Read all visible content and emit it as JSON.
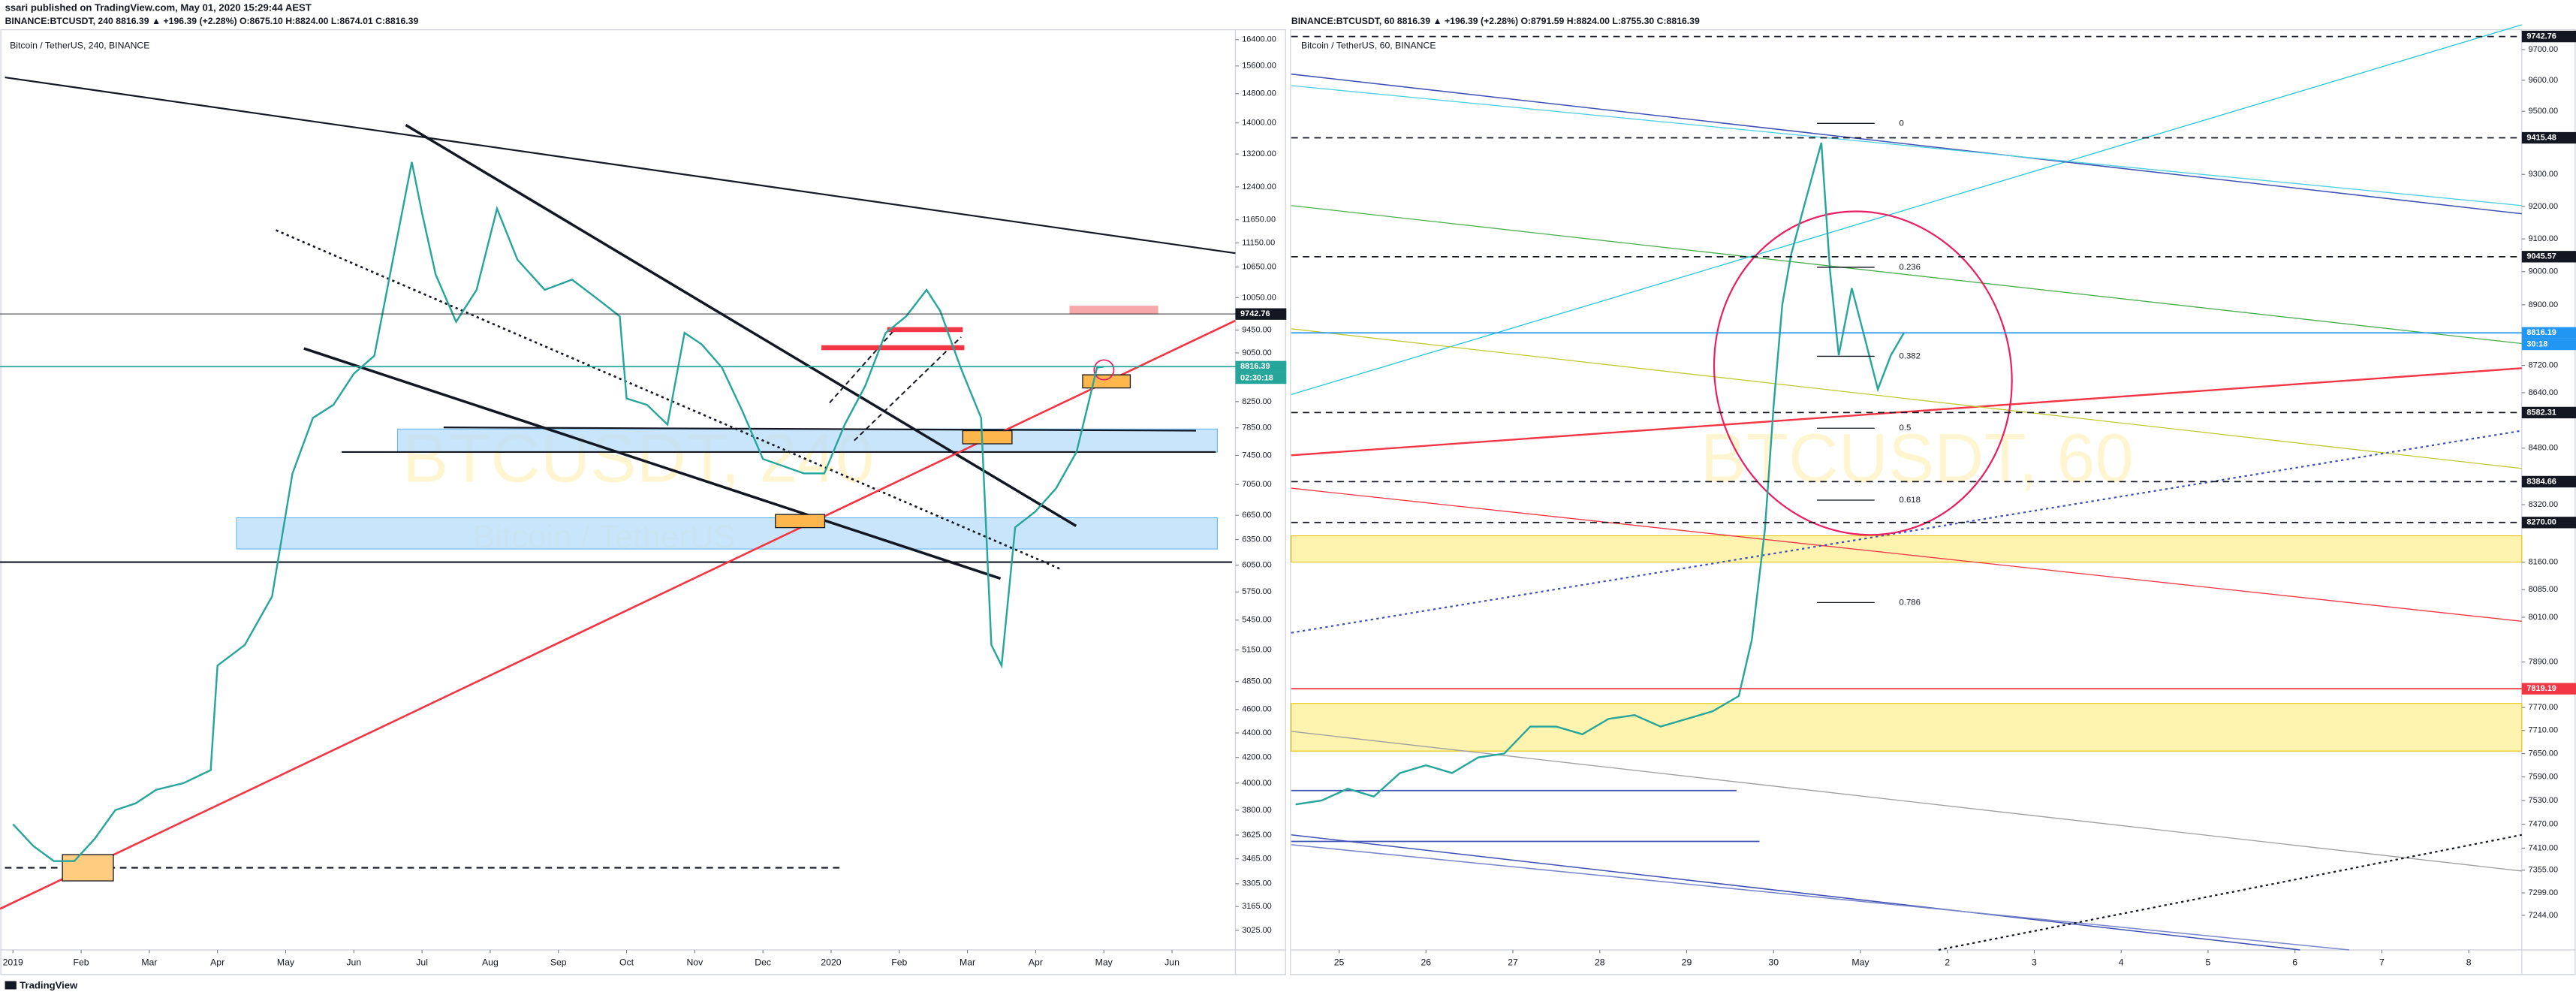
{
  "header": {
    "author_line": "ssari published on TradingView.com, May 01, 2020 15:29:44 AEST"
  },
  "footer": "TradingView",
  "chart_data": [
    {
      "type": "line",
      "header": "BINANCE:BTCUSDT, 240  8816.39 ▲ +196.39 (+2.28%)  O:8675.10  H:8824.00  L:8674.01  C:8816.39",
      "title": "Bitcoin / TetherUS, 240, BINANCE",
      "watermark": "BTCUSDT, 240",
      "watermark_subtitle": "Bitcoin / TetherUS",
      "color": "#26a69a",
      "log_scale": true,
      "x": [
        0,
        0.3,
        0.6,
        0.9,
        1.2,
        1.5,
        1.8,
        2.1,
        2.5,
        2.9,
        3.0,
        3.4,
        3.8,
        4.1,
        4.4,
        4.7,
        5.0,
        5.3,
        5.6,
        5.85,
        6.0,
        6.2,
        6.5,
        6.8,
        7.1,
        7.4,
        7.8,
        8.2,
        8.6,
        8.9,
        9.0,
        9.3,
        9.6,
        9.85,
        10.1,
        10.4,
        10.7,
        11.0,
        11.3,
        11.6,
        11.9,
        12.2,
        12.5,
        12.8,
        13.1,
        13.4,
        13.6,
        13.9,
        14.2,
        14.35,
        14.5,
        14.7,
        15.0,
        15.3,
        15.6,
        15.9,
        16.0
      ],
      "values": [
        3700,
        3550,
        3450,
        3450,
        3600,
        3800,
        3850,
        3950,
        4000,
        4100,
        5000,
        5200,
        5700,
        7200,
        8000,
        8200,
        8700,
        9000,
        11000,
        13000,
        11800,
        10500,
        9600,
        10200,
        11900,
        10800,
        10200,
        10400,
        10000,
        9700,
        8300,
        8200,
        7900,
        9400,
        9200,
        8800,
        8100,
        7400,
        7300,
        7200,
        7200,
        7900,
        8500,
        9400,
        9700,
        10200,
        9800,
        8800,
        8000,
        5200,
        5000,
        6500,
        6700,
        7000,
        7500,
        8800,
        8816
      ],
      "xlim": [
        -0.19,
        17.93
      ],
      "xticks": [
        {
          "value": 0,
          "label": "2019"
        },
        {
          "value": 1,
          "label": "Feb"
        },
        {
          "value": 2,
          "label": "Mar"
        },
        {
          "value": 3,
          "label": "Apr"
        },
        {
          "value": 4,
          "label": "May"
        },
        {
          "value": 5,
          "label": "Jun"
        },
        {
          "value": 6,
          "label": "Jul"
        },
        {
          "value": 7,
          "label": "Aug"
        },
        {
          "value": 8,
          "label": "Sep"
        },
        {
          "value": 9,
          "label": "Oct"
        },
        {
          "value": 10,
          "label": "Nov"
        },
        {
          "value": 11,
          "label": "Dec"
        },
        {
          "value": 12,
          "label": "2020"
        },
        {
          "value": 13,
          "label": "Feb"
        },
        {
          "value": 14,
          "label": "Mar"
        },
        {
          "value": 15,
          "label": "Apr"
        },
        {
          "value": 16,
          "label": "May"
        },
        {
          "value": 17,
          "label": "Jun"
        }
      ],
      "ylim": [
        2915,
        16710
      ],
      "yticks": [
        {
          "value": 16400,
          "label": "16400.00"
        },
        {
          "value": 15600,
          "label": "15600.00"
        },
        {
          "value": 14800,
          "label": "14800.00"
        },
        {
          "value": 14000,
          "label": "14000.00"
        },
        {
          "value": 13200,
          "label": "13200.00"
        },
        {
          "value": 12400,
          "label": "12400.00"
        },
        {
          "value": 11650,
          "label": "11650.00"
        },
        {
          "value": 11150,
          "label": "11150.00"
        },
        {
          "value": 10650,
          "label": "10650.00"
        },
        {
          "value": 10050,
          "label": "10050.00"
        },
        {
          "value": 9450,
          "label": "9450.00"
        },
        {
          "value": 9050,
          "label": "9050.00"
        },
        {
          "value": 8250,
          "label": "8250.00"
        },
        {
          "value": 7850,
          "label": "7850.00"
        },
        {
          "value": 7450,
          "label": "7450.00"
        },
        {
          "value": 7050,
          "label": "7050.00"
        },
        {
          "value": 6650,
          "label": "6650.00"
        },
        {
          "value": 6350,
          "label": "6350.00"
        },
        {
          "value": 6050,
          "label": "6050.00"
        },
        {
          "value": 5750,
          "label": "5750.00"
        },
        {
          "value": 5450,
          "label": "5450.00"
        },
        {
          "value": 5150,
          "label": "5150.00"
        },
        {
          "value": 4850,
          "label": "4850.00"
        },
        {
          "value": 4600,
          "label": "4600.00"
        },
        {
          "value": 4400,
          "label": "4400.00"
        },
        {
          "value": 4200,
          "label": "4200.00"
        },
        {
          "value": 4000,
          "label": "4000.00"
        },
        {
          "value": 3800,
          "label": "3800.00"
        },
        {
          "value": 3625,
          "label": "3625.00"
        },
        {
          "value": 3465,
          "label": "3465.00"
        },
        {
          "value": 3305,
          "label": "3305.00"
        },
        {
          "value": 3165,
          "label": "3165.00"
        },
        {
          "value": 3025,
          "label": "3025.00"
        }
      ],
      "price_labels": [
        9742.76,
        8816.39
      ],
      "price_label_colors": [
        "#131722",
        "#26a69a"
      ],
      "countdown": "02:30:18"
    },
    {
      "type": "line",
      "header": "BINANCE:BTCUSDT, 60  8816.39 ▲ +196.39 (+2.28%)  O:8791.59  H:8824.00  L:8755.30  C:8816.39",
      "title": "Bitcoin / TetherUS, 60, BINANCE",
      "watermark": "BTCUSDT, 60",
      "color": "#26a69a",
      "log_scale": true,
      "x": [
        24.5,
        24.8,
        25.1,
        25.4,
        25.7,
        26.0,
        26.3,
        26.6,
        26.9,
        27.2,
        27.5,
        27.8,
        28.1,
        28.4,
        28.7,
        29.0,
        29.3,
        29.6,
        29.75,
        29.9,
        30.0,
        30.1,
        30.2,
        30.35,
        30.55,
        30.65,
        30.75,
        30.9,
        31.05,
        31.2,
        31.35,
        31.5
      ],
      "values": [
        7520,
        7530,
        7560,
        7540,
        7600,
        7620,
        7600,
        7640,
        7650,
        7720,
        7720,
        7700,
        7740,
        7750,
        7720,
        7740,
        7760,
        7800,
        7950,
        8250,
        8600,
        8900,
        9050,
        9200,
        9400,
        9000,
        8750,
        8950,
        8800,
        8650,
        8750,
        8816
      ],
      "xlim": [
        24.45,
        38.61
      ],
      "xticks": [
        25,
        26,
        27,
        28,
        29,
        30,
        {
          "value": 31,
          "label": "May"
        },
        {
          "value": 32,
          "label": "2"
        },
        {
          "value": 33,
          "label": "3"
        },
        {
          "value": 34,
          "label": "4"
        },
        {
          "value": 35,
          "label": "5"
        },
        {
          "value": 36,
          "label": "6"
        },
        {
          "value": 37,
          "label": "7"
        },
        {
          "value": 38,
          "label": "8"
        }
      ],
      "ylim": [
        7160,
        9765
      ],
      "yticks": [
        {
          "value": 9700,
          "label": "9700.00"
        },
        {
          "value": 9600,
          "label": "9600.00"
        },
        {
          "value": 9500,
          "label": "9500.00"
        },
        {
          "value": 9300,
          "label": "9300.00"
        },
        {
          "value": 9200,
          "label": "9200.00"
        },
        {
          "value": 9100,
          "label": "9100.00"
        },
        {
          "value": 9000,
          "label": "9000.00"
        },
        {
          "value": 8900,
          "label": "8900.00"
        },
        {
          "value": 8720,
          "label": "8720.00"
        },
        {
          "value": 8640,
          "label": "8640.00"
        },
        {
          "value": 8480,
          "label": "8480.00"
        },
        {
          "value": 8320,
          "label": "8320.00"
        },
        {
          "value": 8160,
          "label": "8160.00"
        },
        {
          "value": 8085,
          "label": "8085.00"
        },
        {
          "value": 8010,
          "label": "8010.00"
        },
        {
          "value": 7890,
          "label": "7890.00"
        },
        {
          "value": 7770,
          "label": "7770.00"
        },
        {
          "value": 7710,
          "label": "7710.00"
        },
        {
          "value": 7650,
          "label": "7650.00"
        },
        {
          "value": 7590,
          "label": "7590.00"
        },
        {
          "value": 7530,
          "label": "7530.00"
        },
        {
          "value": 7470,
          "label": "7470.00"
        },
        {
          "value": 7410,
          "label": "7410.00"
        },
        {
          "value": 7355,
          "label": "7355.00"
        },
        {
          "value": 7299,
          "label": "7299.00"
        },
        {
          "value": 7244,
          "label": "7244.00"
        }
      ],
      "price_labels": [
        9742.76,
        9415.48,
        9045.57,
        8816.19,
        8582.31,
        8384.66,
        {
          "value": 8270,
          "label": "8270.00"
        },
        7819.19
      ],
      "price_label_colors": [
        "#131722",
        "#131722",
        "#131722",
        "#2196f3",
        "#131722",
        "#131722",
        "#131722",
        "#f23645"
      ],
      "countdown": "30:18",
      "fib_levels": [
        0,
        0.236,
        0.382,
        0.5,
        0.618,
        0.786
      ]
    }
  ]
}
